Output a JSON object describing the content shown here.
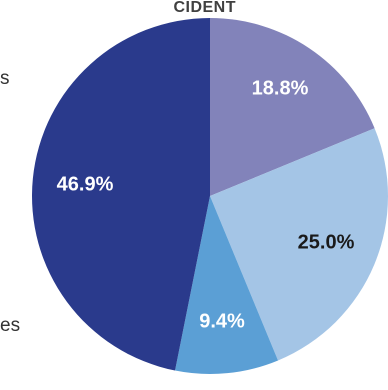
{
  "chart_data": {
    "type": "pie",
    "title": "CIDENT",
    "categories": [
      "",
      "",
      "",
      ""
    ],
    "values": [
      18.8,
      25.0,
      9.4,
      46.9
    ],
    "value_labels": [
      "18.8%",
      "25.0%",
      "9.4%",
      "46.9%"
    ],
    "colors": [
      "#8283BA",
      "#A4C5E6",
      "#5B9FD5",
      "#2A3A8C"
    ],
    "label_colors": [
      "#FFFFFF",
      "#1A1A1A",
      "#FFFFFF",
      "#FFFFFF"
    ],
    "start_angle_deg": 0,
    "direction": "clockwise",
    "legend": "left (cropped)"
  },
  "side_text": {
    "top": "s",
    "bottom": "es"
  },
  "page": {
    "background": "#FFFFFF",
    "title_color": "#404040",
    "side_text_color": "#333333"
  }
}
